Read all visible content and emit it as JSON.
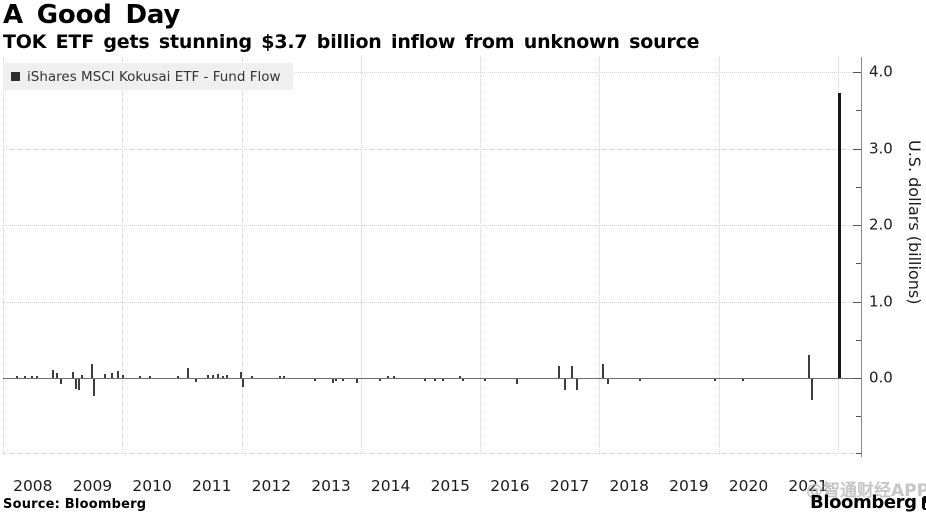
{
  "header": {
    "title": "A Good Day",
    "subtitle": "TOK ETF gets stunning $3.7 billion inflow from unknown source"
  },
  "legend": {
    "label": "iShares MSCI Kokusai ETF - Fund Flow"
  },
  "footer": {
    "source": "Source: Bloomberg",
    "brand": "Bloomberg",
    "watermark": "@智通财经APP"
  },
  "colors": {
    "bar": "#3d3d3d",
    "spike": "#161616",
    "axis": "#8a8a8a",
    "grid": "#d4d4d4",
    "legend_bg": "#efefef",
    "watermark": "#b9b9b9"
  },
  "chart_data": {
    "type": "bar",
    "title": "A Good Day",
    "subtitle": "TOK ETF gets stunning $3.7 billion inflow from unknown source",
    "series_name": "iShares MSCI Kokusai ETF - Fund Flow",
    "xlabel": "",
    "ylabel": "U.S. dollars (billions)",
    "x_tick_labels": [
      "2008",
      "2009",
      "2010",
      "2011",
      "2012",
      "2013",
      "2014",
      "2015",
      "2016",
      "2017",
      "2018",
      "2019",
      "2020",
      "2021"
    ],
    "x_tick_years": [
      2008,
      2009,
      2010,
      2011,
      2012,
      2013,
      2014,
      2015,
      2016,
      2017,
      2018,
      2019,
      2020,
      2021
    ],
    "y_ticks": [
      {
        "v": 4.0,
        "label": "4.0"
      },
      {
        "v": 3.0,
        "label": "3.0"
      },
      {
        "v": 2.0,
        "label": "2.0"
      },
      {
        "v": 1.0,
        "label": "1.0"
      },
      {
        "v": 0.0,
        "label": "0.0"
      }
    ],
    "y_minor_ticks": [
      3.5,
      2.5,
      1.5,
      0.5,
      -0.5,
      -0.98
    ],
    "v_gridline_years": [
      2008,
      2010,
      2012,
      2014,
      2016,
      2018,
      2020,
      2022
    ],
    "ylim": [
      -1.0,
      4.2
    ],
    "xlim": [
      2008,
      2022.3
    ],
    "grid": "dotted",
    "legend_position": "top-left",
    "peak_annotation": "3.7 billion inflow at far right (early 2022 bar)",
    "points": [
      [
        2008.23,
        0.02
      ],
      [
        2008.37,
        0.02
      ],
      [
        2008.49,
        0.03
      ],
      [
        2008.57,
        0.02
      ],
      [
        2008.84,
        0.1
      ],
      [
        2008.91,
        0.07
      ],
      [
        2008.97,
        -0.06
      ],
      [
        2009.17,
        0.08
      ],
      [
        2009.22,
        -0.13
      ],
      [
        2009.27,
        -0.15
      ],
      [
        2009.32,
        0.04
      ],
      [
        2009.49,
        0.18
      ],
      [
        2009.53,
        -0.22
      ],
      [
        2009.71,
        0.05
      ],
      [
        2009.83,
        0.06
      ],
      [
        2009.93,
        0.09
      ],
      [
        2010.01,
        0.04
      ],
      [
        2010.3,
        0.02
      ],
      [
        2010.46,
        0.02
      ],
      [
        2010.93,
        0.02
      ],
      [
        2011.1,
        0.13
      ],
      [
        2011.23,
        -0.04
      ],
      [
        2011.43,
        0.04
      ],
      [
        2011.52,
        0.04
      ],
      [
        2011.6,
        0.05
      ],
      [
        2011.69,
        0.03
      ],
      [
        2011.75,
        0.04
      ],
      [
        2011.99,
        0.08
      ],
      [
        2012.03,
        -0.1
      ],
      [
        2012.17,
        0.02
      ],
      [
        2012.64,
        0.03
      ],
      [
        2012.71,
        0.03
      ],
      [
        2013.23,
        -0.02
      ],
      [
        2013.53,
        -0.05
      ],
      [
        2013.58,
        -0.03
      ],
      [
        2013.7,
        -0.03
      ],
      [
        2013.93,
        -0.05
      ],
      [
        2014.32,
        -0.03
      ],
      [
        2014.45,
        0.03
      ],
      [
        2014.55,
        0.03
      ],
      [
        2015.07,
        -0.02
      ],
      [
        2015.24,
        -0.03
      ],
      [
        2015.37,
        -0.02
      ],
      [
        2015.66,
        0.03
      ],
      [
        2015.72,
        -0.02
      ],
      [
        2016.08,
        -0.02
      ],
      [
        2016.61,
        -0.06
      ],
      [
        2017.32,
        0.16
      ],
      [
        2017.42,
        -0.15
      ],
      [
        2017.54,
        0.16
      ],
      [
        2017.62,
        -0.15
      ],
      [
        2018.06,
        0.18
      ],
      [
        2018.14,
        -0.06
      ],
      [
        2018.68,
        -0.02
      ],
      [
        2019.93,
        -0.02
      ],
      [
        2020.4,
        -0.02
      ],
      [
        2021.52,
        0.3
      ],
      [
        2021.57,
        -0.27
      ],
      [
        2022.02,
        3.73
      ]
    ]
  }
}
